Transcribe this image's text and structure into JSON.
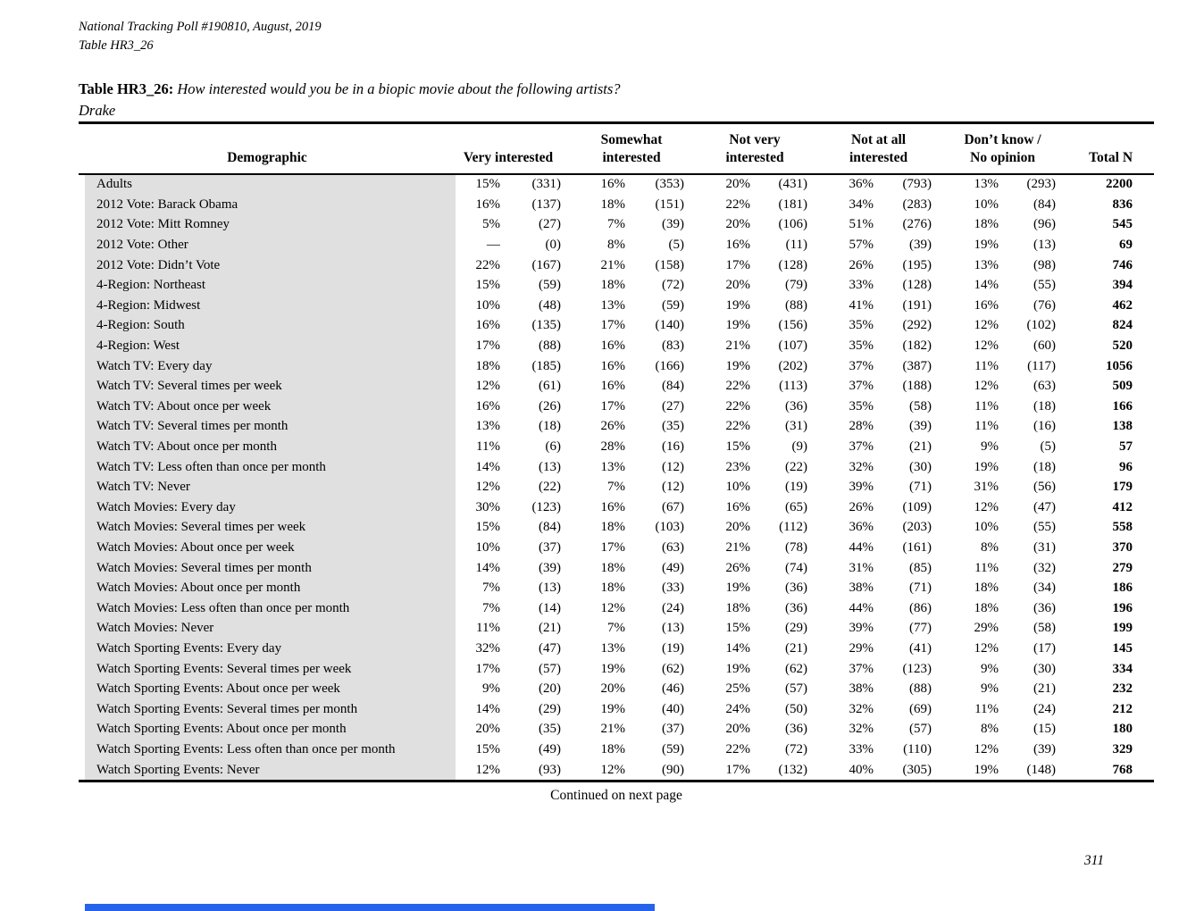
{
  "meta": {
    "line1": "National Tracking Poll #190810, August, 2019",
    "line2": "Table HR3_26"
  },
  "title": {
    "label": "Table HR3_26:",
    "question": "How interested would you be in a biopic movie about the following artists?",
    "subject": "Drake"
  },
  "table": {
    "col_demographic": "Demographic",
    "columns": [
      {
        "line1": "",
        "line2": "Very interested"
      },
      {
        "line1": "Somewhat",
        "line2": "interested"
      },
      {
        "line1": "Not very",
        "line2": "interested"
      },
      {
        "line1": "Not at all",
        "line2": "interested"
      },
      {
        "line1": "Don’t know /",
        "line2": "No opinion"
      }
    ],
    "col_total": "Total N",
    "rows": [
      {
        "label": "Adults",
        "values": [
          "15%",
          "(331)",
          "16%",
          "(353)",
          "20%",
          "(431)",
          "36%",
          "(793)",
          "13%",
          "(293)"
        ],
        "total": "2200"
      },
      {
        "label": "2012 Vote: Barack Obama",
        "values": [
          "16%",
          "(137)",
          "18%",
          "(151)",
          "22%",
          "(181)",
          "34%",
          "(283)",
          "10%",
          "(84)"
        ],
        "total": "836"
      },
      {
        "label": "2012 Vote: Mitt Romney",
        "values": [
          "5%",
          "(27)",
          "7%",
          "(39)",
          "20%",
          "(106)",
          "51%",
          "(276)",
          "18%",
          "(96)"
        ],
        "total": "545"
      },
      {
        "label": "2012 Vote: Other",
        "values": [
          "—",
          "(0)",
          "8%",
          "(5)",
          "16%",
          "(11)",
          "57%",
          "(39)",
          "19%",
          "(13)"
        ],
        "total": "69"
      },
      {
        "label": "2012 Vote: Didn’t Vote",
        "values": [
          "22%",
          "(167)",
          "21%",
          "(158)",
          "17%",
          "(128)",
          "26%",
          "(195)",
          "13%",
          "(98)"
        ],
        "total": "746"
      },
      {
        "label": "4-Region: Northeast",
        "values": [
          "15%",
          "(59)",
          "18%",
          "(72)",
          "20%",
          "(79)",
          "33%",
          "(128)",
          "14%",
          "(55)"
        ],
        "total": "394"
      },
      {
        "label": "4-Region: Midwest",
        "values": [
          "10%",
          "(48)",
          "13%",
          "(59)",
          "19%",
          "(88)",
          "41%",
          "(191)",
          "16%",
          "(76)"
        ],
        "total": "462"
      },
      {
        "label": "4-Region: South",
        "values": [
          "16%",
          "(135)",
          "17%",
          "(140)",
          "19%",
          "(156)",
          "35%",
          "(292)",
          "12%",
          "(102)"
        ],
        "total": "824"
      },
      {
        "label": "4-Region: West",
        "values": [
          "17%",
          "(88)",
          "16%",
          "(83)",
          "21%",
          "(107)",
          "35%",
          "(182)",
          "12%",
          "(60)"
        ],
        "total": "520"
      },
      {
        "label": "Watch TV: Every day",
        "values": [
          "18%",
          "(185)",
          "16%",
          "(166)",
          "19%",
          "(202)",
          "37%",
          "(387)",
          "11%",
          "(117)"
        ],
        "total": "1056"
      },
      {
        "label": "Watch TV: Several times per week",
        "values": [
          "12%",
          "(61)",
          "16%",
          "(84)",
          "22%",
          "(113)",
          "37%",
          "(188)",
          "12%",
          "(63)"
        ],
        "total": "509"
      },
      {
        "label": "Watch TV: About once per week",
        "values": [
          "16%",
          "(26)",
          "17%",
          "(27)",
          "22%",
          "(36)",
          "35%",
          "(58)",
          "11%",
          "(18)"
        ],
        "total": "166"
      },
      {
        "label": "Watch TV: Several times per month",
        "values": [
          "13%",
          "(18)",
          "26%",
          "(35)",
          "22%",
          "(31)",
          "28%",
          "(39)",
          "11%",
          "(16)"
        ],
        "total": "138"
      },
      {
        "label": "Watch TV: About once per month",
        "values": [
          "11%",
          "(6)",
          "28%",
          "(16)",
          "15%",
          "(9)",
          "37%",
          "(21)",
          "9%",
          "(5)"
        ],
        "total": "57"
      },
      {
        "label": "Watch TV: Less often than once per month",
        "values": [
          "14%",
          "(13)",
          "13%",
          "(12)",
          "23%",
          "(22)",
          "32%",
          "(30)",
          "19%",
          "(18)"
        ],
        "total": "96"
      },
      {
        "label": "Watch TV: Never",
        "values": [
          "12%",
          "(22)",
          "7%",
          "(12)",
          "10%",
          "(19)",
          "39%",
          "(71)",
          "31%",
          "(56)"
        ],
        "total": "179"
      },
      {
        "label": "Watch Movies: Every day",
        "values": [
          "30%",
          "(123)",
          "16%",
          "(67)",
          "16%",
          "(65)",
          "26%",
          "(109)",
          "12%",
          "(47)"
        ],
        "total": "412"
      },
      {
        "label": "Watch Movies: Several times per week",
        "values": [
          "15%",
          "(84)",
          "18%",
          "(103)",
          "20%",
          "(112)",
          "36%",
          "(203)",
          "10%",
          "(55)"
        ],
        "total": "558"
      },
      {
        "label": "Watch Movies: About once per week",
        "values": [
          "10%",
          "(37)",
          "17%",
          "(63)",
          "21%",
          "(78)",
          "44%",
          "(161)",
          "8%",
          "(31)"
        ],
        "total": "370"
      },
      {
        "label": "Watch Movies: Several times per month",
        "values": [
          "14%",
          "(39)",
          "18%",
          "(49)",
          "26%",
          "(74)",
          "31%",
          "(85)",
          "11%",
          "(32)"
        ],
        "total": "279"
      },
      {
        "label": "Watch Movies: About once per month",
        "values": [
          "7%",
          "(13)",
          "18%",
          "(33)",
          "19%",
          "(36)",
          "38%",
          "(71)",
          "18%",
          "(34)"
        ],
        "total": "186"
      },
      {
        "label": "Watch Movies: Less often than once per month",
        "values": [
          "7%",
          "(14)",
          "12%",
          "(24)",
          "18%",
          "(36)",
          "44%",
          "(86)",
          "18%",
          "(36)"
        ],
        "total": "196"
      },
      {
        "label": "Watch Movies: Never",
        "values": [
          "11%",
          "(21)",
          "7%",
          "(13)",
          "15%",
          "(29)",
          "39%",
          "(77)",
          "29%",
          "(58)"
        ],
        "total": "199"
      },
      {
        "label": "Watch Sporting Events: Every day",
        "values": [
          "32%",
          "(47)",
          "13%",
          "(19)",
          "14%",
          "(21)",
          "29%",
          "(41)",
          "12%",
          "(17)"
        ],
        "total": "145"
      },
      {
        "label": "Watch Sporting Events: Several times per week",
        "values": [
          "17%",
          "(57)",
          "19%",
          "(62)",
          "19%",
          "(62)",
          "37%",
          "(123)",
          "9%",
          "(30)"
        ],
        "total": "334"
      },
      {
        "label": "Watch Sporting Events: About once per week",
        "values": [
          "9%",
          "(20)",
          "20%",
          "(46)",
          "25%",
          "(57)",
          "38%",
          "(88)",
          "9%",
          "(21)"
        ],
        "total": "232"
      },
      {
        "label": "Watch Sporting Events: Several times per month",
        "values": [
          "14%",
          "(29)",
          "19%",
          "(40)",
          "24%",
          "(50)",
          "32%",
          "(69)",
          "11%",
          "(24)"
        ],
        "total": "212"
      },
      {
        "label": "Watch Sporting Events: About once per month",
        "values": [
          "20%",
          "(35)",
          "21%",
          "(37)",
          "20%",
          "(36)",
          "32%",
          "(57)",
          "8%",
          "(15)"
        ],
        "total": "180"
      },
      {
        "label": "Watch Sporting Events: Less often than once per month",
        "values": [
          "15%",
          "(49)",
          "18%",
          "(59)",
          "22%",
          "(72)",
          "33%",
          "(110)",
          "12%",
          "(39)"
        ],
        "total": "329"
      },
      {
        "label": "Watch Sporting Events: Never",
        "values": [
          "12%",
          "(93)",
          "12%",
          "(90)",
          "17%",
          "(132)",
          "40%",
          "(305)",
          "19%",
          "(148)"
        ],
        "total": "768"
      }
    ]
  },
  "footer": {
    "continued": "Continued on next page",
    "page_number": "311"
  },
  "colors": {
    "row_label_bg": "#e0e0e0",
    "bottom_bar": "#2563eb"
  }
}
